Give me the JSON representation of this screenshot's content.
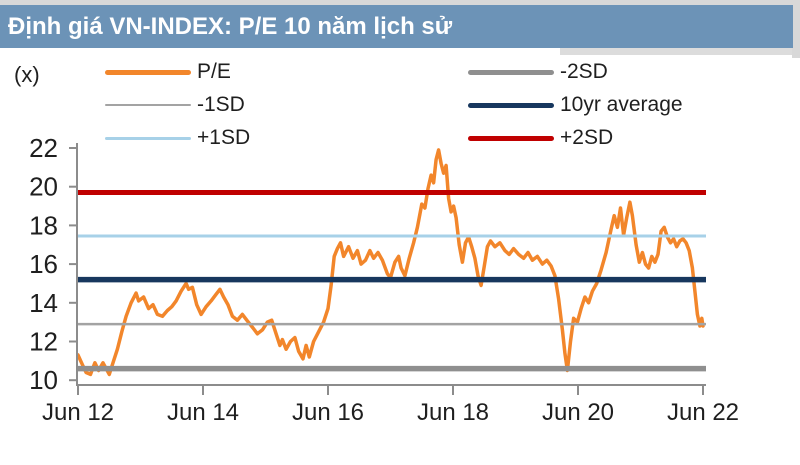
{
  "title": "Định giá VN-INDEX: P/E 10 năm lịch sử",
  "colors": {
    "title_bar": "#6c93b7",
    "pe_line": "#f2862b",
    "plus2sd": "#c00000",
    "plus1sd": "#a7d1e8",
    "average": "#17375e",
    "minus1sd": "#a3a3a3",
    "minus2sd": "#8f8f8f",
    "axis": "#8c8c8c",
    "text": "#1f1f1f"
  },
  "legend": {
    "items": [
      {
        "label": "P/E",
        "color": "#f2862b",
        "weight": 5
      },
      {
        "label": "-1SD",
        "color": "#a3a3a3",
        "weight": 2
      },
      {
        "label": "+1SD",
        "color": "#a7d1e8",
        "weight": 3
      },
      {
        "label": "-2SD",
        "color": "#8f8f8f",
        "weight": 5
      },
      {
        "label": "10yr average",
        "color": "#17375e",
        "weight": 5
      },
      {
        "label": "+2SD",
        "color": "#c00000",
        "weight": 5
      }
    ]
  },
  "chart_data": {
    "type": "line",
    "title": "Định giá VN-INDEX: P/E 10 năm lịch sử",
    "xlabel": "",
    "ylabel": "(x)",
    "ylim": [
      9.5,
      22.5
    ],
    "y_ticks": [
      22,
      20,
      18,
      16,
      14,
      12,
      10
    ],
    "x_ticks": [
      "Jun 12",
      "Jun 14",
      "Jun 16",
      "Jun 18",
      "Jun 20",
      "Jun 22"
    ],
    "x_tick_years": [
      2012.45,
      2014.45,
      2016.45,
      2018.45,
      2020.45,
      2022.45
    ],
    "grid": false,
    "legend_position": "top",
    "reference_lines": [
      {
        "name": "+2SD",
        "value": 19.7,
        "color": "#c00000",
        "width": 5
      },
      {
        "name": "+1SD",
        "value": 17.45,
        "color": "#a7d1e8",
        "width": 3
      },
      {
        "name": "10yr average",
        "value": 15.2,
        "color": "#17375e",
        "width": 5.5
      },
      {
        "name": "-1SD",
        "value": 12.9,
        "color": "#a3a3a3",
        "width": 2.5
      },
      {
        "name": "-2SD",
        "value": 10.6,
        "color": "#8f8f8f",
        "width": 5.5
      }
    ],
    "series": [
      {
        "name": "P/E",
        "color": "#f2862b",
        "width": 3.5,
        "points": [
          [
            2012.45,
            11.3
          ],
          [
            2012.52,
            10.8
          ],
          [
            2012.58,
            10.4
          ],
          [
            2012.65,
            10.3
          ],
          [
            2012.72,
            10.9
          ],
          [
            2012.78,
            10.5
          ],
          [
            2012.85,
            10.9
          ],
          [
            2012.95,
            10.3
          ],
          [
            2013.02,
            11.0
          ],
          [
            2013.08,
            11.6
          ],
          [
            2013.15,
            12.5
          ],
          [
            2013.22,
            13.3
          ],
          [
            2013.3,
            14.0
          ],
          [
            2013.38,
            14.5
          ],
          [
            2013.42,
            14.1
          ],
          [
            2013.5,
            14.3
          ],
          [
            2013.58,
            13.7
          ],
          [
            2013.65,
            13.9
          ],
          [
            2013.72,
            13.4
          ],
          [
            2013.8,
            13.3
          ],
          [
            2013.88,
            13.6
          ],
          [
            2013.95,
            13.8
          ],
          [
            2014.02,
            14.1
          ],
          [
            2014.1,
            14.6
          ],
          [
            2014.18,
            15.0
          ],
          [
            2014.22,
            14.7
          ],
          [
            2014.28,
            14.8
          ],
          [
            2014.35,
            13.9
          ],
          [
            2014.42,
            13.4
          ],
          [
            2014.5,
            13.8
          ],
          [
            2014.58,
            14.1
          ],
          [
            2014.65,
            14.4
          ],
          [
            2014.72,
            14.7
          ],
          [
            2014.78,
            14.3
          ],
          [
            2014.85,
            13.9
          ],
          [
            2014.92,
            13.3
          ],
          [
            2015.0,
            13.1
          ],
          [
            2015.08,
            13.4
          ],
          [
            2015.15,
            13.1
          ],
          [
            2015.25,
            12.7
          ],
          [
            2015.32,
            12.4
          ],
          [
            2015.4,
            12.6
          ],
          [
            2015.48,
            13.0
          ],
          [
            2015.55,
            13.1
          ],
          [
            2015.62,
            12.4
          ],
          [
            2015.68,
            11.8
          ],
          [
            2015.72,
            12.1
          ],
          [
            2015.78,
            11.6
          ],
          [
            2015.85,
            12.0
          ],
          [
            2015.92,
            12.2
          ],
          [
            2015.98,
            11.5
          ],
          [
            2016.05,
            11.1
          ],
          [
            2016.1,
            11.8
          ],
          [
            2016.15,
            11.2
          ],
          [
            2016.22,
            12.0
          ],
          [
            2016.3,
            12.5
          ],
          [
            2016.38,
            13.0
          ],
          [
            2016.45,
            13.7
          ],
          [
            2016.5,
            14.9
          ],
          [
            2016.55,
            16.4
          ],
          [
            2016.6,
            16.8
          ],
          [
            2016.65,
            17.1
          ],
          [
            2016.7,
            16.4
          ],
          [
            2016.78,
            16.9
          ],
          [
            2016.85,
            16.3
          ],
          [
            2016.92,
            16.7
          ],
          [
            2016.98,
            16.0
          ],
          [
            2017.05,
            16.2
          ],
          [
            2017.12,
            16.7
          ],
          [
            2017.18,
            16.3
          ],
          [
            2017.25,
            16.6
          ],
          [
            2017.32,
            16.2
          ],
          [
            2017.4,
            15.5
          ],
          [
            2017.45,
            15.3
          ],
          [
            2017.52,
            16.1
          ],
          [
            2017.58,
            16.4
          ],
          [
            2017.62,
            15.8
          ],
          [
            2017.68,
            15.4
          ],
          [
            2017.75,
            16.3
          ],
          [
            2017.82,
            17.1
          ],
          [
            2017.88,
            17.9
          ],
          [
            2017.95,
            19.1
          ],
          [
            2018.0,
            18.9
          ],
          [
            2018.05,
            19.9
          ],
          [
            2018.1,
            20.6
          ],
          [
            2018.14,
            20.2
          ],
          [
            2018.18,
            21.4
          ],
          [
            2018.22,
            21.9
          ],
          [
            2018.26,
            21.2
          ],
          [
            2018.3,
            20.7
          ],
          [
            2018.34,
            21.1
          ],
          [
            2018.38,
            19.4
          ],
          [
            2018.42,
            18.7
          ],
          [
            2018.46,
            19.0
          ],
          [
            2018.5,
            18.4
          ],
          [
            2018.55,
            17.0
          ],
          [
            2018.6,
            16.1
          ],
          [
            2018.65,
            17.1
          ],
          [
            2018.7,
            17.4
          ],
          [
            2018.75,
            16.9
          ],
          [
            2018.8,
            16.3
          ],
          [
            2018.85,
            15.4
          ],
          [
            2018.9,
            14.9
          ],
          [
            2018.95,
            15.9
          ],
          [
            2019.0,
            16.9
          ],
          [
            2019.05,
            17.2
          ],
          [
            2019.12,
            16.9
          ],
          [
            2019.2,
            17.1
          ],
          [
            2019.28,
            16.7
          ],
          [
            2019.35,
            16.5
          ],
          [
            2019.42,
            16.8
          ],
          [
            2019.5,
            16.5
          ],
          [
            2019.58,
            16.3
          ],
          [
            2019.65,
            16.6
          ],
          [
            2019.72,
            16.2
          ],
          [
            2019.8,
            16.4
          ],
          [
            2019.88,
            16.0
          ],
          [
            2019.95,
            16.2
          ],
          [
            2020.02,
            15.9
          ],
          [
            2020.08,
            15.4
          ],
          [
            2020.14,
            14.2
          ],
          [
            2020.2,
            12.6
          ],
          [
            2020.24,
            11.4
          ],
          [
            2020.28,
            10.5
          ],
          [
            2020.33,
            12.0
          ],
          [
            2020.38,
            13.2
          ],
          [
            2020.44,
            13.0
          ],
          [
            2020.5,
            13.7
          ],
          [
            2020.56,
            14.3
          ],
          [
            2020.62,
            14.0
          ],
          [
            2020.68,
            14.6
          ],
          [
            2020.75,
            15.0
          ],
          [
            2020.82,
            15.7
          ],
          [
            2020.9,
            16.6
          ],
          [
            2020.98,
            17.8
          ],
          [
            2021.03,
            18.5
          ],
          [
            2021.08,
            17.9
          ],
          [
            2021.13,
            18.9
          ],
          [
            2021.18,
            17.5
          ],
          [
            2021.23,
            18.4
          ],
          [
            2021.28,
            19.2
          ],
          [
            2021.32,
            18.5
          ],
          [
            2021.38,
            17.0
          ],
          [
            2021.43,
            16.1
          ],
          [
            2021.48,
            16.6
          ],
          [
            2021.53,
            16.0
          ],
          [
            2021.58,
            15.8
          ],
          [
            2021.63,
            16.4
          ],
          [
            2021.68,
            16.1
          ],
          [
            2021.73,
            16.5
          ],
          [
            2021.78,
            17.7
          ],
          [
            2021.83,
            17.9
          ],
          [
            2021.88,
            17.4
          ],
          [
            2021.93,
            17.1
          ],
          [
            2021.98,
            17.3
          ],
          [
            2022.03,
            16.9
          ],
          [
            2022.08,
            17.2
          ],
          [
            2022.13,
            17.3
          ],
          [
            2022.18,
            17.1
          ],
          [
            2022.23,
            16.7
          ],
          [
            2022.28,
            15.8
          ],
          [
            2022.32,
            14.6
          ],
          [
            2022.36,
            13.4
          ],
          [
            2022.4,
            12.8
          ],
          [
            2022.43,
            13.2
          ],
          [
            2022.45,
            12.8
          ]
        ]
      }
    ]
  }
}
